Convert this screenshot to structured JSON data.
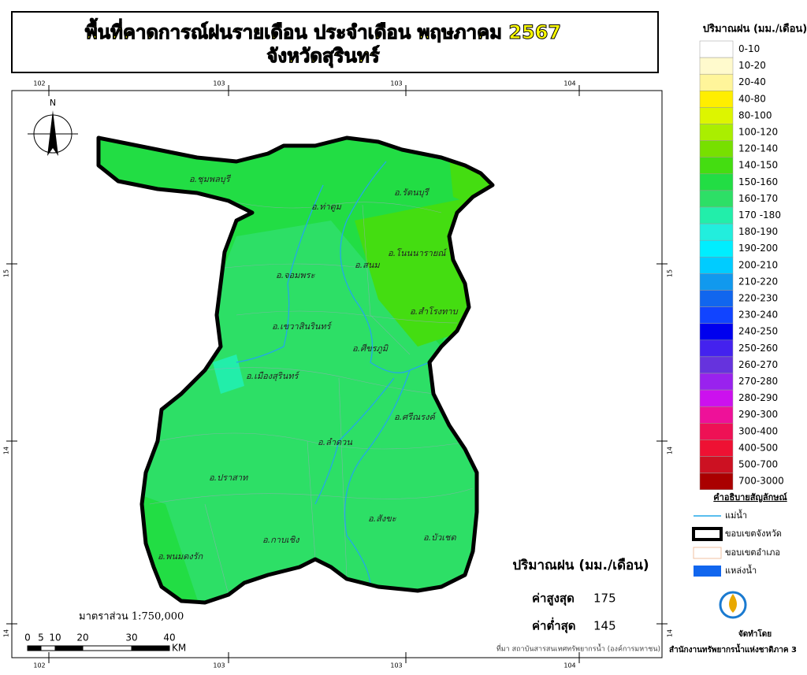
{
  "header": {
    "title": "พื้นที่คาดการณ์ฝนรายเดือน ประจำเดือน พฤษภาคม 2567",
    "subtitle": "จังหวัดสุรินทร์"
  },
  "rain_legend": {
    "title": "ปริมาณฝน (มม./เดือน)",
    "classes": [
      {
        "label": "0-10",
        "color": "#ffffff"
      },
      {
        "label": "10-20",
        "color": "#fffacd"
      },
      {
        "label": "20-40",
        "color": "#fff59a"
      },
      {
        "label": "40-80",
        "color": "#ffee00"
      },
      {
        "label": "80-100",
        "color": "#ddf500"
      },
      {
        "label": "100-120",
        "color": "#aaee00"
      },
      {
        "label": "120-140",
        "color": "#77e000"
      },
      {
        "label": "140-150",
        "color": "#44dd11"
      },
      {
        "label": "150-160",
        "color": "#22dd44"
      },
      {
        "label": "160-170",
        "color": "#2ddf66"
      },
      {
        "label": "170 -180",
        "color": "#22eeaa"
      },
      {
        "label": "180-190",
        "color": "#22eedd"
      },
      {
        "label": "190-200",
        "color": "#00eeff"
      },
      {
        "label": "200-210",
        "color": "#00ccff"
      },
      {
        "label": "210-220",
        "color": "#1199ee"
      },
      {
        "label": "220-230",
        "color": "#1166ee"
      },
      {
        "label": "230-240",
        "color": "#1144ff"
      },
      {
        "label": "240-250",
        "color": "#0000ee"
      },
      {
        "label": "250-260",
        "color": "#4422ee"
      },
      {
        "label": "260-270",
        "color": "#6633dd"
      },
      {
        "label": "270-280",
        "color": "#9922ee"
      },
      {
        "label": "280-290",
        "color": "#cc11ee"
      },
      {
        "label": "290-300",
        "color": "#ee1199"
      },
      {
        "label": "300-400",
        "color": "#ee1155"
      },
      {
        "label": "400-500",
        "color": "#ee1133"
      },
      {
        "label": "500-700",
        "color": "#cc1122"
      },
      {
        "label": "700-3000",
        "color": "#aa0000"
      }
    ]
  },
  "grid_labels": {
    "top": [
      "102",
      "103",
      "103",
      "104"
    ],
    "side": [
      "15",
      "14",
      "14"
    ]
  },
  "north": "N",
  "districts": [
    "อ.ชุมพลบุรี",
    "อ.ท่าตูม",
    "อ.รัตนบุรี",
    "อ.โนนนารายณ์",
    "อ.สนม",
    "อ.จอมพระ",
    "อ.สำโรงทาบ",
    "อ.เขวาสินรินทร์",
    "อ.ศีขรภูมิ",
    "อ.เมืองสุรินทร์",
    "อ.ศรีณรงค์",
    "อ.ลำดวน",
    "อ.ปราสาท",
    "อ.สังขะ",
    "อ.บัวเชด",
    "อ.กาบเชิง",
    "อ.พนมดงรัก"
  ],
  "scale": {
    "text": "มาตราส่วน 1:750,000",
    "ticks": [
      "0",
      "5",
      "10",
      "20",
      "30",
      "40"
    ],
    "unit": "KM"
  },
  "symbols": {
    "title": "คำอธิบายสัญลักษณ์",
    "items": [
      "แม่น้ำ",
      "ขอบเขตจังหวัด",
      "ขอบเขตอำเภอ",
      "แหล่งน้ำ"
    ]
  },
  "stats": {
    "title": "ปริมาณฝน (มม./เดือน)",
    "max_label": "ค่าสูงสุด",
    "max": 175,
    "min_label": "ค่าต่ำสุด",
    "min": 145
  },
  "source": "ที่มา  สถาบันสารสนเทศทรัพยากรน้ำ (องค์การมหาชน)",
  "credit": {
    "label": "จัดทำโดย",
    "org": "สำนักงานทรัพยากรน้ำแห่งชาติภาค 3"
  }
}
